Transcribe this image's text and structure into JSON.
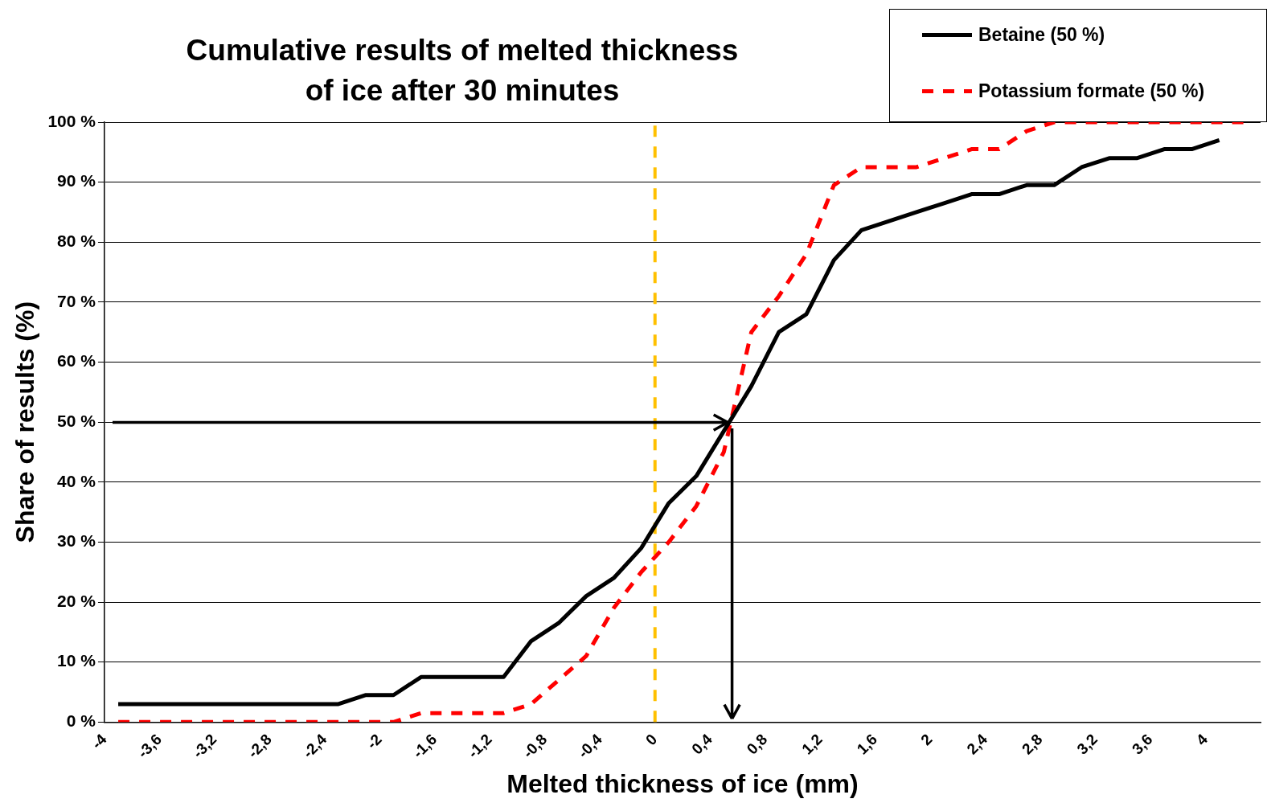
{
  "chart_data": {
    "type": "line",
    "title": "Cumulative results of melted thickness\nof ice after 30 minutes",
    "xlabel": "Melted thickness of ice (mm)",
    "ylabel": "Share of results (%)",
    "xlim": [
      -4,
      4.4
    ],
    "ylim": [
      0,
      100
    ],
    "xticks": [
      {
        "value": -4,
        "label": "-4"
      },
      {
        "value": -3.6,
        "label": "-3,6"
      },
      {
        "value": -3.2,
        "label": "-3,2"
      },
      {
        "value": -2.8,
        "label": "-2,8"
      },
      {
        "value": -2.4,
        "label": "-2,4"
      },
      {
        "value": -2,
        "label": "-2"
      },
      {
        "value": -1.6,
        "label": "-1,6"
      },
      {
        "value": -1.2,
        "label": "-1,2"
      },
      {
        "value": -0.8,
        "label": "-0,8"
      },
      {
        "value": -0.4,
        "label": "-0,4"
      },
      {
        "value": 0,
        "label": "0"
      },
      {
        "value": 0.4,
        "label": "0,4"
      },
      {
        "value": 0.8,
        "label": "0,8"
      },
      {
        "value": 1.2,
        "label": "1,2"
      },
      {
        "value": 1.6,
        "label": "1,6"
      },
      {
        "value": 2,
        "label": "2"
      },
      {
        "value": 2.4,
        "label": "2,4"
      },
      {
        "value": 2.8,
        "label": "2,8"
      },
      {
        "value": 3.2,
        "label": "3,2"
      },
      {
        "value": 3.6,
        "label": "3,6"
      },
      {
        "value": 4,
        "label": "4"
      }
    ],
    "yticks": [
      {
        "value": 0,
        "label": "0 %"
      },
      {
        "value": 10,
        "label": "10 %"
      },
      {
        "value": 20,
        "label": "20 %"
      },
      {
        "value": 30,
        "label": "30 %"
      },
      {
        "value": 40,
        "label": "40 %"
      },
      {
        "value": 50,
        "label": "50 %"
      },
      {
        "value": 60,
        "label": "60 %"
      },
      {
        "value": 70,
        "label": "70 %"
      },
      {
        "value": 80,
        "label": "80 %"
      },
      {
        "value": 90,
        "label": "90 %"
      },
      {
        "value": 100,
        "label": "100 %"
      }
    ],
    "grid": "y",
    "legend": "top right",
    "marker": "none",
    "ref_lines": [
      {
        "axis": "x",
        "value": 0,
        "color": "#ffc000",
        "line_style": "dashed"
      }
    ],
    "series": [
      {
        "name": "Betaine (50 %)",
        "color": "#000000",
        "line_style": "solid",
        "x": [
          -3.9,
          -2.3,
          -2.1,
          -1.9,
          -1.7,
          -1.1,
          -0.9,
          -0.7,
          -0.5,
          -0.3,
          -0.1,
          0.1,
          0.3,
          0.5,
          0.7,
          0.9,
          1.1,
          1.3,
          1.5,
          1.7,
          1.9,
          2.1,
          2.3,
          2.5,
          2.7,
          2.9,
          3.1,
          3.3,
          3.5,
          3.7,
          3.9,
          4.1
        ],
        "values": [
          3,
          3,
          4.5,
          4.5,
          7.5,
          7.5,
          13.5,
          16.5,
          21,
          24,
          29,
          36.5,
          41,
          48.5,
          56,
          65,
          68,
          77,
          82,
          83.5,
          85,
          86.5,
          88,
          88,
          89.5,
          89.5,
          92.5,
          94,
          94,
          95.5,
          95.5,
          97
        ]
      },
      {
        "name": "Potassium formate (50 %)",
        "color": "#ff0000",
        "line_style": "dashed",
        "x": [
          -3.9,
          -1.9,
          -1.7,
          -1.1,
          -0.9,
          -0.7,
          -0.5,
          -0.3,
          -0.1,
          0.1,
          0.3,
          0.5,
          0.7,
          0.9,
          1.1,
          1.3,
          1.5,
          1.7,
          1.9,
          2.1,
          2.3,
          2.5,
          2.7,
          2.9,
          4.3
        ],
        "values": [
          0,
          0,
          1.5,
          1.5,
          3,
          7,
          11,
          19,
          25,
          30,
          36,
          45,
          65,
          71,
          78,
          89.5,
          92.5,
          92.5,
          92.5,
          94,
          95.5,
          95.5,
          98.5,
          100,
          100
        ]
      }
    ]
  }
}
